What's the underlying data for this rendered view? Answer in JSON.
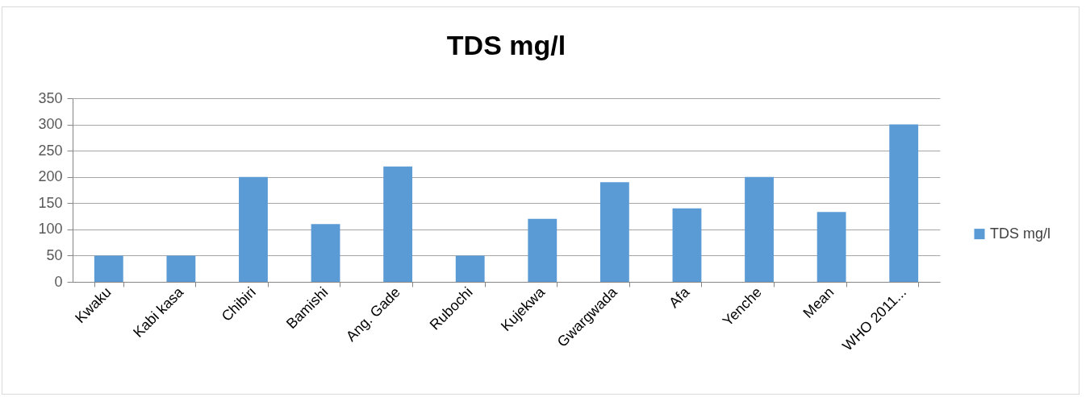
{
  "chart_data": {
    "type": "bar",
    "title": "TDS mg/l",
    "categories": [
      "Kwaku",
      "Kabi kasa",
      "Chibiri",
      "Bamishi",
      "Ang. Gade",
      "Rubochi",
      "Kujekwa",
      "Gwargwada",
      "Afa",
      "Yenche",
      "Mean",
      "WHO 2011..."
    ],
    "series": [
      {
        "name": "TDS mg/l",
        "color": "#5b9bd5",
        "values": [
          50,
          50,
          200,
          110,
          220,
          50,
          120,
          190,
          140,
          200,
          133,
          300
        ]
      }
    ],
    "ylim": [
      0,
      350
    ],
    "yticks": [
      0,
      50,
      100,
      150,
      200,
      250,
      300,
      350
    ],
    "grid": "y",
    "legend": "right"
  }
}
